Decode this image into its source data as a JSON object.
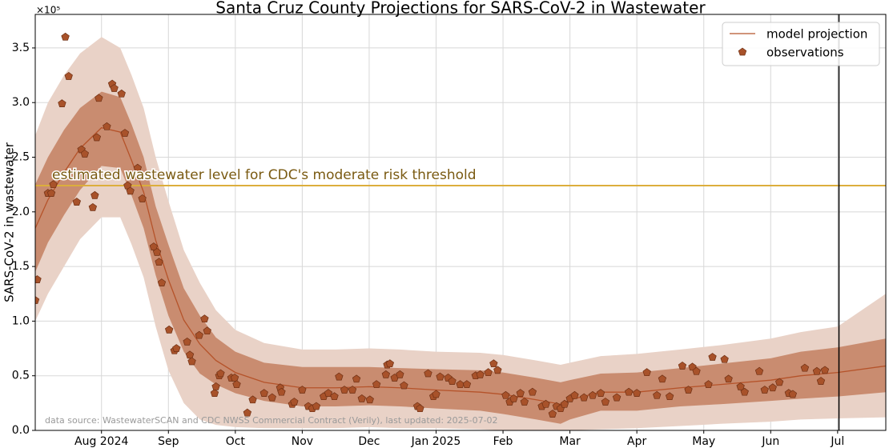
{
  "chart_data": {
    "type": "line",
    "title": "Santa Cruz County Projections for SARS-CoV-2 in Wastewater",
    "y_label": "SARS-CoV-2 in wastewater",
    "y_offset_label": "×10⁵",
    "source_note": "data source: WastewaterSCAN and CDC NWSS Commercial Contract (Verily), last updated: 2025-07-02",
    "xlim": [
      -0.99,
      11.72
    ],
    "ylim": [
      0,
      3.807
    ],
    "xticks": [
      {
        "value": 0,
        "label": "Aug 2024"
      },
      {
        "value": 1,
        "label": "Sep"
      },
      {
        "value": 2,
        "label": "Oct"
      },
      {
        "value": 3,
        "label": "Nov"
      },
      {
        "value": 4,
        "label": "Dec"
      },
      {
        "value": 5,
        "label": "Jan 2025"
      },
      {
        "value": 6,
        "label": "Feb"
      },
      {
        "value": 7,
        "label": "Mar"
      },
      {
        "value": 8,
        "label": "Apr"
      },
      {
        "value": 9,
        "label": "May"
      },
      {
        "value": 10,
        "label": "Jun"
      },
      {
        "value": 11,
        "label": "Jul"
      }
    ],
    "yticks": [
      {
        "value": 0,
        "label": "0.0"
      },
      0.5,
      {
        "value": 1,
        "label": "1.0"
      },
      1.5,
      {
        "value": 2,
        "label": "2.0"
      },
      2.5,
      {
        "value": 3,
        "label": "3.0"
      },
      3.5
    ],
    "grid": true,
    "legend_loc": "upper right",
    "bands": [
      {
        "color": "#e9d2c7",
        "x": [
          -0.99,
          -0.8,
          -0.56,
          -0.32,
          0,
          0.28,
          0.45,
          0.63,
          0.81,
          1.0,
          1.23,
          1.47,
          1.71,
          2.0,
          2.43,
          3.0,
          3.5,
          4.0,
          4.46,
          5.0,
          5.66,
          6.0,
          6.5,
          6.86,
          7.0,
          7.46,
          8.0,
          8.65,
          9.25,
          10.0,
          10.45,
          11.0,
          11.72
        ],
        "upper": [
          2.7,
          3.0,
          3.25,
          3.45,
          3.6,
          3.5,
          3.25,
          2.95,
          2.5,
          2.1,
          1.65,
          1.35,
          1.1,
          0.92,
          0.8,
          0.74,
          0.74,
          0.75,
          0.74,
          0.72,
          0.71,
          0.69,
          0.64,
          0.6,
          0.62,
          0.68,
          0.7,
          0.74,
          0.78,
          0.84,
          0.9,
          0.95,
          1.25
        ],
        "lower": [
          1.0,
          1.25,
          1.5,
          1.75,
          1.95,
          1.95,
          1.7,
          1.4,
          0.95,
          0.55,
          0.25,
          0.1,
          0.05,
          0.03,
          0.02,
          0.02,
          0.02,
          0.03,
          0.02,
          0.02,
          0.01,
          0,
          0,
          0,
          0,
          0.01,
          0.02,
          0.04,
          0.06,
          0.08,
          0.1,
          0.11,
          0.12
        ]
      },
      {
        "color": "#c98c70",
        "x": [
          -0.99,
          -0.8,
          -0.56,
          -0.32,
          0,
          0.28,
          0.45,
          0.63,
          0.81,
          1.0,
          1.23,
          1.47,
          1.71,
          2.0,
          2.43,
          3.0,
          3.5,
          4.0,
          4.46,
          5.0,
          5.66,
          6.0,
          6.5,
          6.86,
          7.0,
          7.46,
          8.0,
          8.65,
          9.25,
          10.0,
          10.45,
          11.0,
          11.72
        ],
        "upper": [
          2.25,
          2.5,
          2.75,
          2.95,
          3.1,
          3.05,
          2.8,
          2.5,
          2.05,
          1.7,
          1.3,
          1.05,
          0.85,
          0.72,
          0.62,
          0.58,
          0.58,
          0.58,
          0.57,
          0.56,
          0.55,
          0.53,
          0.48,
          0.44,
          0.46,
          0.52,
          0.53,
          0.57,
          0.61,
          0.66,
          0.72,
          0.76,
          0.84
        ],
        "lower": [
          1.45,
          1.72,
          1.97,
          2.2,
          2.42,
          2.4,
          2.15,
          1.85,
          1.42,
          1.05,
          0.72,
          0.52,
          0.42,
          0.34,
          0.27,
          0.22,
          0.22,
          0.23,
          0.22,
          0.2,
          0.18,
          0.15,
          0.1,
          0.06,
          0.1,
          0.18,
          0.18,
          0.22,
          0.24,
          0.27,
          0.29,
          0.31,
          0.35
        ]
      }
    ],
    "series": [
      {
        "name": "model projection",
        "color": "#b5532a",
        "x": [
          -0.99,
          -0.8,
          -0.56,
          -0.32,
          0,
          0.28,
          0.45,
          0.63,
          0.81,
          1.0,
          1.23,
          1.47,
          1.71,
          2.0,
          2.43,
          3.0,
          3.5,
          4.0,
          4.46,
          5.0,
          5.66,
          6.0,
          6.5,
          6.86,
          7.0,
          7.46,
          8.0,
          8.65,
          9.25,
          10.0,
          10.45,
          11.0,
          11.72
        ],
        "values": [
          1.85,
          2.11,
          2.36,
          2.58,
          2.77,
          2.73,
          2.47,
          2.18,
          1.74,
          1.38,
          1.01,
          0.79,
          0.64,
          0.53,
          0.44,
          0.39,
          0.39,
          0.4,
          0.39,
          0.37,
          0.35,
          0.33,
          0.28,
          0.24,
          0.28,
          0.35,
          0.35,
          0.39,
          0.42,
          0.46,
          0.5,
          0.53,
          0.59
        ]
      },
      {
        "name": "observations",
        "color": "#a8522a",
        "x": [
          -0.99,
          -0.96,
          -0.8,
          -0.75,
          -0.72,
          -0.59,
          -0.54,
          -0.49,
          -0.37,
          -0.3,
          -0.25,
          -0.13,
          -0.1,
          -0.07,
          -0.04,
          0.08,
          0.16,
          0.19,
          0.3,
          0.35,
          0.39,
          0.43,
          0.54,
          0.61,
          0.78,
          0.83,
          0.86,
          0.9,
          1.01,
          1.09,
          1.12,
          1.28,
          1.32,
          1.35,
          1.46,
          1.54,
          1.58,
          1.69,
          1.71,
          1.76,
          1.78,
          1.94,
          1.99,
          2.02,
          2.18,
          2.26,
          2.43,
          2.55,
          2.67,
          2.69,
          2.85,
          2.88,
          3.0,
          3.09,
          3.15,
          3.21,
          3.32,
          3.39,
          3.48,
          3.55,
          3.63,
          3.75,
          3.81,
          3.89,
          4.01,
          4.11,
          4.25,
          4.27,
          4.31,
          4.38,
          4.46,
          4.52,
          4.72,
          4.76,
          4.88,
          4.96,
          5.0,
          5.06,
          5.18,
          5.24,
          5.36,
          5.46,
          5.59,
          5.66,
          5.78,
          5.86,
          5.92,
          6.04,
          6.1,
          6.16,
          6.26,
          6.32,
          6.44,
          6.58,
          6.64,
          6.74,
          6.8,
          6.86,
          6.92,
          7.0,
          7.07,
          7.21,
          7.34,
          7.46,
          7.53,
          7.7,
          7.88,
          8.0,
          8.15,
          8.3,
          8.38,
          8.49,
          8.68,
          8.77,
          8.83,
          8.89,
          9.07,
          9.13,
          9.31,
          9.37,
          9.55,
          9.61,
          9.83,
          9.91,
          10.03,
          10.13,
          10.27,
          10.33,
          10.51,
          10.69,
          10.75,
          10.81
        ],
        "values": [
          1.19,
          1.38,
          2.17,
          2.17,
          2.25,
          2.99,
          3.6,
          3.24,
          2.09,
          2.57,
          2.53,
          2.04,
          2.15,
          2.68,
          3.04,
          2.78,
          3.17,
          3.13,
          3.08,
          2.72,
          2.24,
          2.19,
          2.4,
          2.12,
          1.68,
          1.63,
          1.54,
          1.35,
          0.92,
          0.73,
          0.75,
          0.81,
          0.69,
          0.63,
          0.87,
          1.02,
          0.91,
          0.34,
          0.4,
          0.5,
          0.52,
          0.48,
          0.48,
          0.42,
          0.16,
          0.28,
          0.34,
          0.3,
          0.39,
          0.35,
          0.24,
          0.26,
          0.37,
          0.22,
          0.2,
          0.22,
          0.31,
          0.34,
          0.31,
          0.49,
          0.37,
          0.37,
          0.47,
          0.29,
          0.28,
          0.42,
          0.51,
          0.6,
          0.61,
          0.48,
          0.51,
          0.41,
          0.22,
          0.2,
          0.52,
          0.31,
          0.33,
          0.49,
          0.48,
          0.45,
          0.42,
          0.42,
          0.5,
          0.51,
          0.53,
          0.61,
          0.55,
          0.32,
          0.26,
          0.29,
          0.34,
          0.26,
          0.35,
          0.22,
          0.24,
          0.15,
          0.22,
          0.2,
          0.24,
          0.29,
          0.32,
          0.3,
          0.32,
          0.34,
          0.26,
          0.3,
          0.35,
          0.34,
          0.53,
          0.32,
          0.47,
          0.31,
          0.59,
          0.37,
          0.58,
          0.54,
          0.42,
          0.67,
          0.65,
          0.47,
          0.4,
          0.35,
          0.54,
          0.37,
          0.39,
          0.44,
          0.34,
          0.33,
          0.57,
          0.54,
          0.45,
          0.55
        ]
      }
    ],
    "threshold": {
      "value": 2.24,
      "label": "estimated wastewater level for CDC's moderate risk threshold",
      "color": "#dcae3c"
    },
    "vline": {
      "x": 11.02,
      "color": "#000000"
    }
  }
}
